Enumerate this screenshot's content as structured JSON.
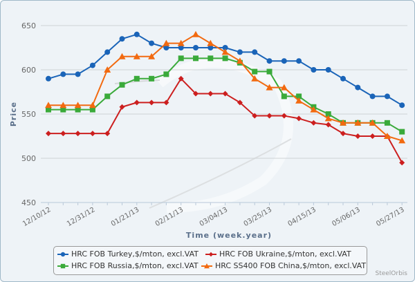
{
  "chart_data": {
    "type": "line",
    "title": "",
    "xlabel": "Time (week.year)",
    "ylabel": "Price",
    "ylim": [
      450,
      650
    ],
    "yticks": [
      450,
      500,
      550,
      600,
      650
    ],
    "grid": true,
    "legend_position": "bottom",
    "x": [
      "12/10/12",
      "12/17/12",
      "12/24/12",
      "12/31/12",
      "01/07/13",
      "01/14/13",
      "01/21/13",
      "01/28/13",
      "02/04/13",
      "02/11/13",
      "02/18/13",
      "02/25/13",
      "03/04/13",
      "03/11/13",
      "03/18/13",
      "03/25/13",
      "04/01/13",
      "04/08/13",
      "04/15/13",
      "04/22/13",
      "04/29/13",
      "05/06/13",
      "05/13/13",
      "05/20/13",
      "05/27/13"
    ],
    "xtick_labels": [
      "12/10/12",
      "12/31/12",
      "01/21/13",
      "02/11/13",
      "03/04/13",
      "03/25/13",
      "04/15/13",
      "05/06/13",
      "05/27/13"
    ],
    "series": [
      {
        "name": "HRC FOB Turkey,$/mton, excl.VAT",
        "color": "#1a64b8",
        "marker": "circle",
        "values": [
          590,
          595,
          595,
          605,
          620,
          635,
          640,
          630,
          625,
          625,
          625,
          625,
          625,
          620,
          620,
          610,
          610,
          610,
          600,
          600,
          590,
          580,
          570,
          570,
          560
        ]
      },
      {
        "name": "HRC FOB Ukraine,$/mton, excl.VAT",
        "color": "#cc1f1f",
        "marker": "diamond",
        "values": [
          528,
          528,
          528,
          528,
          528,
          558,
          563,
          563,
          563,
          590,
          573,
          573,
          573,
          563,
          548,
          548,
          548,
          545,
          540,
          538,
          528,
          525,
          525,
          525,
          495
        ]
      },
      {
        "name": "HRC FOB Russia,$/mton, excl.VAT",
        "color": "#3aaa3a",
        "marker": "square",
        "values": [
          555,
          555,
          555,
          555,
          570,
          583,
          590,
          590,
          595,
          613,
          613,
          613,
          613,
          608,
          598,
          598,
          570,
          570,
          558,
          550,
          540,
          540,
          540,
          540,
          530
        ]
      },
      {
        "name": "HRC SS400 FOB China,$/mton, excl.VAT",
        "color": "#f26a10",
        "marker": "triangle",
        "values": [
          560,
          560,
          560,
          560,
          600,
          615,
          615,
          615,
          630,
          630,
          640,
          630,
          620,
          610,
          590,
          580,
          580,
          565,
          555,
          545,
          540,
          540,
          540,
          525,
          520
        ]
      }
    ]
  },
  "credit": "SteelOrbis"
}
